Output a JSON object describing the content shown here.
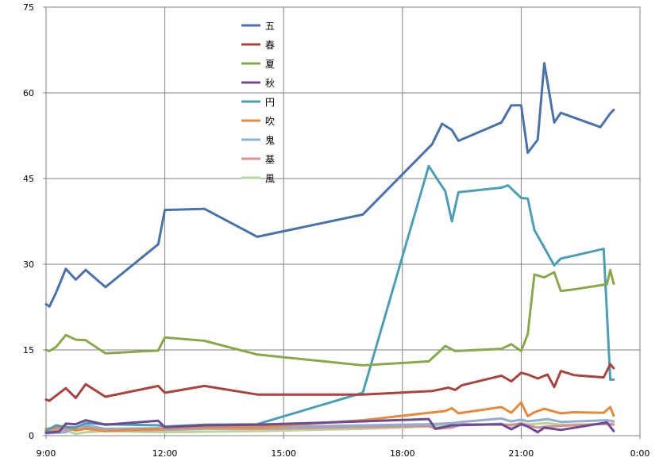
{
  "chart_data": {
    "type": "line",
    "title": "",
    "xlabel": "",
    "ylabel": "",
    "ylim": [
      0,
      75
    ],
    "yticks": [
      0,
      15,
      30,
      45,
      60,
      75
    ],
    "xlim": [
      "9:00",
      "0:00"
    ],
    "xtick_labels": [
      "9:00",
      "12:00",
      "15:00",
      "18:00",
      "21:00",
      "0:00"
    ],
    "grid": true,
    "legend_position": "top-center",
    "series": [
      {
        "name": "五",
        "color": "#4a72a8",
        "points": [
          [
            "9:00",
            23
          ],
          [
            "9:05",
            22.6
          ],
          [
            "9:15",
            25
          ],
          [
            "9:30",
            29.2
          ],
          [
            "9:45",
            27.3
          ],
          [
            "10:00",
            29
          ],
          [
            "10:30",
            26
          ],
          [
            "11:50",
            33.5
          ],
          [
            "12:00",
            39.5
          ],
          [
            "13:00",
            39.7
          ],
          [
            "14:20",
            34.8
          ],
          [
            "17:00",
            38.7
          ],
          [
            "18:45",
            51
          ],
          [
            "19:00",
            54.6
          ],
          [
            "19:15",
            53.5
          ],
          [
            "19:25",
            51.6
          ],
          [
            "20:30",
            54.8
          ],
          [
            "20:45",
            57.8
          ],
          [
            "21:00",
            57.8
          ],
          [
            "21:10",
            49.5
          ],
          [
            "21:25",
            51.8
          ],
          [
            "21:35",
            65.2
          ],
          [
            "21:50",
            54.8
          ],
          [
            "22:00",
            56.5
          ],
          [
            "23:00",
            54
          ],
          [
            "23:15",
            56.4
          ],
          [
            "23:20",
            57
          ]
        ]
      },
      {
        "name": "春",
        "color": "#a84440",
        "points": [
          [
            "9:00",
            6.3
          ],
          [
            "9:05",
            6.1
          ],
          [
            "9:30",
            8.3
          ],
          [
            "9:45",
            6.6
          ],
          [
            "10:00",
            9
          ],
          [
            "10:30",
            6.8
          ],
          [
            "11:50",
            8.7
          ],
          [
            "12:00",
            7.5
          ],
          [
            "13:00",
            8.7
          ],
          [
            "14:20",
            7.2
          ],
          [
            "17:00",
            7.2
          ],
          [
            "18:45",
            7.8
          ],
          [
            "19:10",
            8.4
          ],
          [
            "19:20",
            8
          ],
          [
            "19:30",
            8.8
          ],
          [
            "20:30",
            10.5
          ],
          [
            "20:45",
            9.5
          ],
          [
            "21:00",
            11
          ],
          [
            "21:10",
            10.7
          ],
          [
            "21:25",
            10
          ],
          [
            "21:40",
            10.7
          ],
          [
            "21:50",
            8.5
          ],
          [
            "22:00",
            11.3
          ],
          [
            "22:20",
            10.6
          ],
          [
            "23:05",
            10.2
          ],
          [
            "23:15",
            12.5
          ],
          [
            "23:20",
            11.8
          ]
        ]
      },
      {
        "name": "夏",
        "color": "#8aa84a",
        "points": [
          [
            "9:00",
            15
          ],
          [
            "9:05",
            14.8
          ],
          [
            "9:15",
            15.5
          ],
          [
            "9:30",
            17.6
          ],
          [
            "9:45",
            16.8
          ],
          [
            "10:00",
            16.7
          ],
          [
            "10:30",
            14.4
          ],
          [
            "11:50",
            14.9
          ],
          [
            "12:00",
            17.2
          ],
          [
            "13:00",
            16.6
          ],
          [
            "14:20",
            14.2
          ],
          [
            "17:00",
            12.3
          ],
          [
            "18:40",
            13
          ],
          [
            "18:55",
            14.6
          ],
          [
            "19:05",
            15.7
          ],
          [
            "19:20",
            14.8
          ],
          [
            "20:30",
            15.2
          ],
          [
            "20:45",
            16
          ],
          [
            "21:00",
            14.8
          ],
          [
            "21:10",
            17.8
          ],
          [
            "21:20",
            28.2
          ],
          [
            "21:35",
            27.7
          ],
          [
            "21:50",
            28.6
          ],
          [
            "22:00",
            25.3
          ],
          [
            "22:20",
            25.6
          ],
          [
            "23:10",
            26.5
          ],
          [
            "23:15",
            29
          ],
          [
            "23:20",
            26.6
          ]
        ]
      },
      {
        "name": "秋",
        "color": "#6c4a94",
        "points": [
          [
            "9:00",
            0.5
          ],
          [
            "9:20",
            0.7
          ],
          [
            "9:30",
            2.1
          ],
          [
            "9:45",
            2
          ],
          [
            "10:00",
            2.7
          ],
          [
            "10:30",
            1.9
          ],
          [
            "11:50",
            2.6
          ],
          [
            "12:00",
            1.5
          ],
          [
            "13:00",
            1.8
          ],
          [
            "14:20",
            1.9
          ],
          [
            "17:00",
            2.5
          ],
          [
            "18:40",
            2.9
          ],
          [
            "18:50",
            1.2
          ],
          [
            "19:15",
            1.8
          ],
          [
            "20:30",
            2
          ],
          [
            "20:45",
            1.1
          ],
          [
            "21:00",
            2
          ],
          [
            "21:10",
            1.6
          ],
          [
            "21:25",
            0.6
          ],
          [
            "21:35",
            1.4
          ],
          [
            "22:00",
            1
          ],
          [
            "23:10",
            2.3
          ],
          [
            "23:20",
            0.8
          ]
        ]
      },
      {
        "name": "円",
        "color": "#4a9fb4",
        "points": [
          [
            "9:00",
            0.8
          ],
          [
            "9:15",
            1.8
          ],
          [
            "9:30",
            1.5
          ],
          [
            "9:45",
            1.4
          ],
          [
            "10:00",
            2.2
          ],
          [
            "10:30",
            2
          ],
          [
            "11:50",
            1.8
          ],
          [
            "12:00",
            1.6
          ],
          [
            "13:00",
            1.9
          ],
          [
            "14:20",
            2
          ],
          [
            "17:00",
            7.5
          ],
          [
            "18:40",
            47.2
          ],
          [
            "18:55",
            44.5
          ],
          [
            "19:05",
            42.8
          ],
          [
            "19:15",
            37.5
          ],
          [
            "19:25",
            42.6
          ],
          [
            "20:30",
            43.4
          ],
          [
            "20:40",
            43.8
          ],
          [
            "21:00",
            41.6
          ],
          [
            "21:10",
            41.5
          ],
          [
            "21:20",
            36
          ],
          [
            "21:50",
            29.8
          ],
          [
            "22:00",
            31
          ],
          [
            "22:20",
            31.5
          ],
          [
            "23:05",
            32.7
          ],
          [
            "23:15",
            9.8
          ],
          [
            "23:20",
            9.8
          ]
        ]
      },
      {
        "name": "吹",
        "color": "#e58a3a",
        "points": [
          [
            "9:00",
            1.2
          ],
          [
            "9:30",
            1.6
          ],
          [
            "9:45",
            0.9
          ],
          [
            "10:00",
            1.2
          ],
          [
            "10:30",
            0.8
          ],
          [
            "11:50",
            1.2
          ],
          [
            "12:00",
            1.3
          ],
          [
            "13:00",
            1.5
          ],
          [
            "14:20",
            1.5
          ],
          [
            "17:00",
            2.7
          ],
          [
            "18:40",
            4
          ],
          [
            "19:05",
            4.3
          ],
          [
            "19:15",
            4.8
          ],
          [
            "19:25",
            3.9
          ],
          [
            "20:30",
            5
          ],
          [
            "20:45",
            4
          ],
          [
            "21:00",
            5.8
          ],
          [
            "21:10",
            3.4
          ],
          [
            "21:20",
            4.1
          ],
          [
            "21:35",
            4.7
          ],
          [
            "22:00",
            3.9
          ],
          [
            "22:20",
            4.1
          ],
          [
            "23:05",
            4
          ],
          [
            "23:15",
            5
          ],
          [
            "23:20",
            3.5
          ]
        ]
      },
      {
        "name": "鬼",
        "color": "#92acd4",
        "points": [
          [
            "9:00",
            0.4
          ],
          [
            "9:30",
            0.6
          ],
          [
            "9:45",
            1.5
          ],
          [
            "10:00",
            1.8
          ],
          [
            "10:30",
            1.2
          ],
          [
            "11:50",
            1.3
          ],
          [
            "12:00",
            1.1
          ],
          [
            "13:00",
            1.3
          ],
          [
            "14:20",
            1.5
          ],
          [
            "17:00",
            1.8
          ],
          [
            "18:40",
            2
          ],
          [
            "19:15",
            2.2
          ],
          [
            "19:30",
            2.4
          ],
          [
            "20:30",
            3
          ],
          [
            "20:45",
            2.5
          ],
          [
            "21:00",
            2.8
          ],
          [
            "21:10",
            2.5
          ],
          [
            "21:25",
            2.7
          ],
          [
            "21:40",
            2.9
          ],
          [
            "22:00",
            2.4
          ],
          [
            "23:10",
            2.7
          ],
          [
            "23:20",
            2.5
          ]
        ]
      },
      {
        "name": "基",
        "color": "#d49290",
        "points": [
          [
            "9:00",
            0.9
          ],
          [
            "9:30",
            1.1
          ],
          [
            "9:45",
            1
          ],
          [
            "10:00",
            1.4
          ],
          [
            "10:30",
            0.9
          ],
          [
            "12:00",
            1
          ],
          [
            "13:00",
            1.2
          ],
          [
            "14:20",
            1.2
          ],
          [
            "17:00",
            1.5
          ],
          [
            "18:40",
            1.7
          ],
          [
            "18:50",
            1.2
          ],
          [
            "19:15",
            1.4
          ],
          [
            "19:30",
            2
          ],
          [
            "20:45",
            1.9
          ],
          [
            "21:00",
            2.1
          ],
          [
            "21:10",
            1.8
          ],
          [
            "21:25",
            1.4
          ],
          [
            "21:40",
            1.6
          ],
          [
            "22:00",
            1.7
          ],
          [
            "23:10",
            2.1
          ],
          [
            "23:20",
            1.9
          ]
        ]
      },
      {
        "name": "風",
        "color": "#b8d49a",
        "points": [
          [
            "9:00",
            0.5
          ],
          [
            "9:30",
            0.9
          ],
          [
            "9:45",
            0.3
          ],
          [
            "10:00",
            0.6
          ],
          [
            "10:30",
            0.8
          ],
          [
            "12:00",
            0.6
          ],
          [
            "13:00",
            0.7
          ],
          [
            "14:20",
            0.8
          ],
          [
            "17:00",
            1.2
          ],
          [
            "18:40",
            1.6
          ],
          [
            "19:15",
            1.8
          ],
          [
            "20:30",
            2.1
          ],
          [
            "20:45",
            1.6
          ],
          [
            "21:00",
            2.3
          ],
          [
            "21:10",
            1.9
          ],
          [
            "21:25",
            2.1
          ],
          [
            "21:40",
            2.2
          ],
          [
            "22:00",
            1.9
          ],
          [
            "23:10",
            2
          ],
          [
            "23:20",
            2.1
          ]
        ]
      }
    ]
  }
}
